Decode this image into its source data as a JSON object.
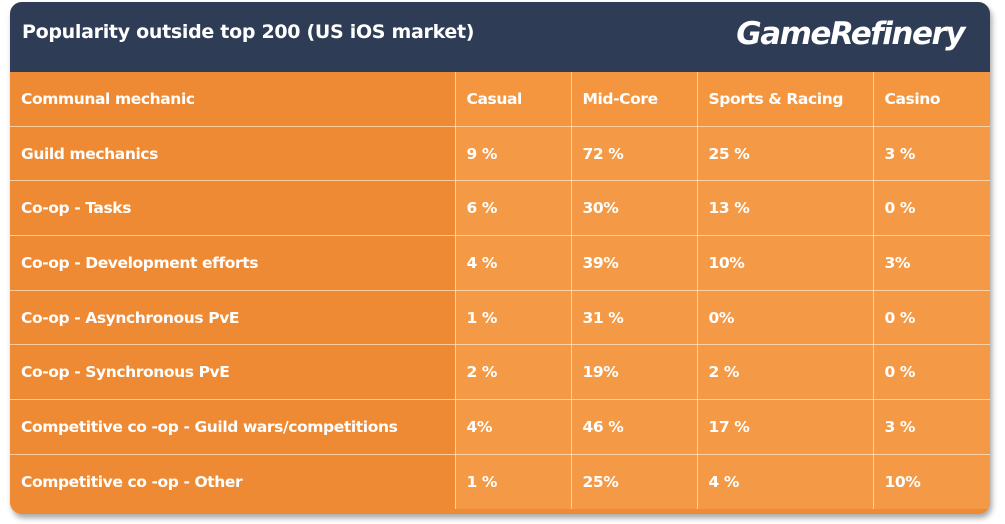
{
  "header": {
    "title": "Popularity outside top 200 (US iOS market)",
    "logo": "GameRefinery",
    "background": "#2e3d55"
  },
  "colors": {
    "row_label_bg": "#ef8a34",
    "cell_bg": "#f49a46",
    "text": "#ffffff"
  },
  "table": {
    "columns": [
      "Communal mechanic",
      "Casual",
      "Mid-Core",
      "Sports & Racing",
      "Casino"
    ],
    "rows": [
      [
        "Guild mechanics",
        "9 %",
        "72 %",
        "25 %",
        "3 %"
      ],
      [
        "Co-op - Tasks",
        "6 %",
        "30%",
        "13 %",
        "0 %"
      ],
      [
        "Co-op - Development efforts",
        "4 %",
        "39%",
        "10%",
        "3%"
      ],
      [
        "Co-op - Asynchronous PvE",
        "1 %",
        "31 %",
        "0%",
        "0 %"
      ],
      [
        "Co-op - Synchronous PvE",
        "2 %",
        "19%",
        "2 %",
        "0 %"
      ],
      [
        "Competitive co -op  - Guild wars/competitions",
        "4%",
        "46 %",
        "17 %",
        "3 %"
      ],
      [
        "Competitive co -op  - Other",
        "1 %",
        "25%",
        "4 %",
        "10%"
      ]
    ]
  }
}
